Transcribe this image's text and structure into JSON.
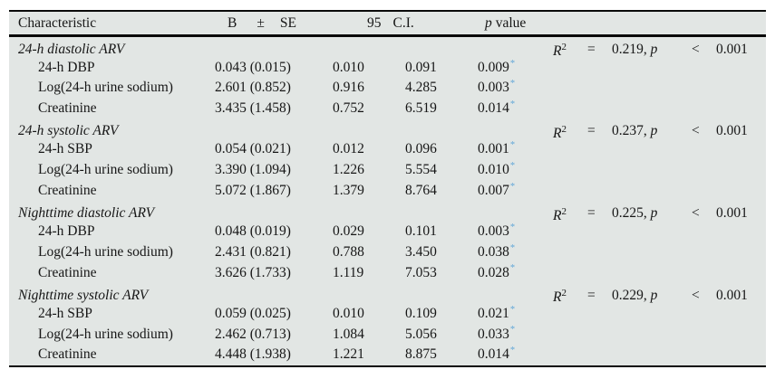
{
  "colors": {
    "table_background": "#e2e6e4",
    "rule_color": "#0a0a0a",
    "asterisk_color": "#64a8d8",
    "text_color": "#161616"
  },
  "header": {
    "characteristic": "Characteristic",
    "b": "B",
    "plus_minus": "±",
    "se": "SE",
    "ci_95": "95",
    "ci_label": "C.I.",
    "p_italic": "p",
    "value_word": "value"
  },
  "labels": {
    "r2": "R",
    "r2_sup": "2",
    "eq": "=",
    "p_word": "p",
    "lt": "<"
  },
  "sections": [
    {
      "title": "24-h diastolic ARV",
      "r2_value": "0.219,",
      "p_threshold": "0.001",
      "rows": [
        {
          "label": "24-h DBP",
          "b_se": "0.043 (0.015)",
          "ci_low": "0.010",
          "ci_high": "0.091",
          "p": "0.009",
          "sig": "*"
        },
        {
          "label": "Log(24-h urine sodium)",
          "b_se": "2.601 (0.852)",
          "ci_low": "0.916",
          "ci_high": "4.285",
          "p": "0.003",
          "sig": "*"
        },
        {
          "label": "Creatinine",
          "b_se": "3.435 (1.458)",
          "ci_low": "0.752",
          "ci_high": "6.519",
          "p": "0.014",
          "sig": "*"
        }
      ]
    },
    {
      "title": "24-h systolic ARV",
      "r2_value": "0.237,",
      "p_threshold": "0.001",
      "rows": [
        {
          "label": "24-h SBP",
          "b_se": "0.054 (0.021)",
          "ci_low": "0.012",
          "ci_high": "0.096",
          "p": "0.001",
          "sig": "*"
        },
        {
          "label": "Log(24-h urine sodium)",
          "b_se": "3.390 (1.094)",
          "ci_low": "1.226",
          "ci_high": "5.554",
          "p": "0.010",
          "sig": "*"
        },
        {
          "label": "Creatinine",
          "b_se": "5.072 (1.867)",
          "ci_low": "1.379",
          "ci_high": "8.764",
          "p": "0.007",
          "sig": "*"
        }
      ]
    },
    {
      "title": "Nighttime diastolic ARV",
      "r2_value": "0.225,",
      "p_threshold": "0.001",
      "rows": [
        {
          "label": "24-h DBP",
          "b_se": "0.048 (0.019)",
          "ci_low": "0.029",
          "ci_high": "0.101",
          "p": "0.003",
          "sig": "*"
        },
        {
          "label": "Log(24-h urine sodium)",
          "b_se": "2.431 (0.821)",
          "ci_low": "0.788",
          "ci_high": "3.450",
          "p": "0.038",
          "sig": "*"
        },
        {
          "label": "Creatinine",
          "b_se": "3.626 (1.733)",
          "ci_low": "1.119",
          "ci_high": "7.053",
          "p": "0.028",
          "sig": "*"
        }
      ]
    },
    {
      "title": "Nighttime systolic ARV",
      "r2_value": "0.229,",
      "p_threshold": "0.001",
      "rows": [
        {
          "label": "24-h SBP",
          "b_se": "0.059 (0.025)",
          "ci_low": "0.010",
          "ci_high": "0.109",
          "p": "0.021",
          "sig": "*"
        },
        {
          "label": "Log(24-h urine sodium)",
          "b_se": "2.462 (0.713)",
          "ci_low": "1.084",
          "ci_high": "5.056",
          "p": "0.033",
          "sig": "*"
        },
        {
          "label": "Creatinine",
          "b_se": "4.448 (1.938)",
          "ci_low": "1.221",
          "ci_high": "8.875",
          "p": "0.014",
          "sig": "*"
        }
      ]
    }
  ]
}
